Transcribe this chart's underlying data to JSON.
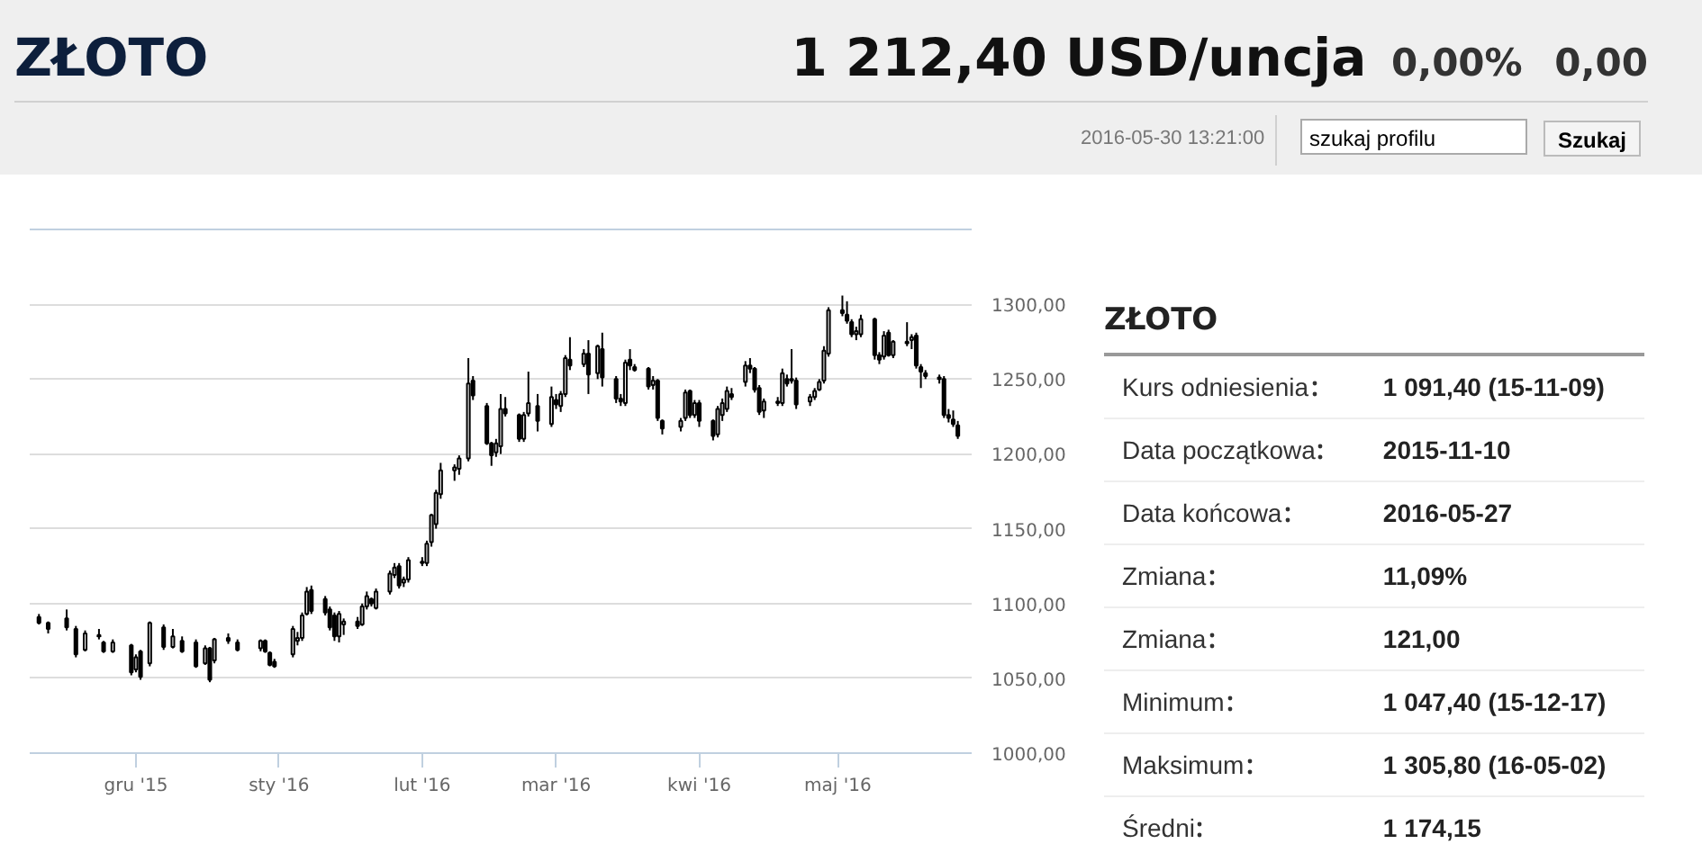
{
  "chart_data": [
    {
      "type": "candlestick",
      "title": "ZŁOTO",
      "subtitle": "1 212,40 USD/uncja",
      "annotations": [
        "0,00%",
        "0,00",
        "2016-05-30 13:21:00",
        "szukaj profilu",
        "Szukaj"
      ],
      "color": "#000000",
      "grid": "y",
      "xlim": [
        "2015-11-08",
        "2016-05-30"
      ],
      "xticks": [
        {
          "value": "2015-12-01",
          "label": "gru '15"
        },
        {
          "value": "2016-01-01",
          "label": "sty '16"
        },
        {
          "value": "2016-02-01",
          "label": "lut '16"
        },
        {
          "value": "2016-03-01",
          "label": "mar '16"
        },
        {
          "value": "2016-04-01",
          "label": "kwi '16"
        },
        {
          "value": "2016-05-01",
          "label": "maj '16"
        }
      ],
      "ylim": [
        1000,
        1350
      ],
      "yticks": [
        {
          "value": 1000,
          "label": "1000,00"
        },
        {
          "value": 1050,
          "label": "1050,00"
        },
        {
          "value": 1100,
          "label": "1100,00"
        },
        {
          "value": 1150,
          "label": "1150,00"
        },
        {
          "value": 1200,
          "label": "1200,00"
        },
        {
          "value": 1250,
          "label": "1250,00"
        },
        {
          "value": 1300,
          "label": "1300,00"
        }
      ],
      "x": [
        "2015-11-10",
        "2015-11-12",
        "2015-11-16",
        "2015-11-18",
        "2015-11-20",
        "2015-11-23",
        "2015-11-24",
        "2015-11-26",
        "2015-11-30",
        "2015-12-01",
        "2015-12-02",
        "2015-12-04",
        "2015-12-07",
        "2015-12-09",
        "2015-12-11",
        "2015-12-14",
        "2015-12-16",
        "2015-12-17",
        "2015-12-18",
        "2015-12-21",
        "2015-12-23",
        "2015-12-28",
        "2015-12-29",
        "2015-12-30",
        "2015-12-31",
        "2016-01-04",
        "2016-01-05",
        "2016-01-06",
        "2016-01-07",
        "2016-01-08",
        "2016-01-11",
        "2016-01-12",
        "2016-01-13",
        "2016-01-14",
        "2016-01-15",
        "2016-01-18",
        "2016-01-19",
        "2016-01-20",
        "2016-01-21",
        "2016-01-22",
        "2016-01-25",
        "2016-01-26",
        "2016-01-27",
        "2016-01-28",
        "2016-01-29",
        "2016-02-01",
        "2016-02-02",
        "2016-02-03",
        "2016-02-04",
        "2016-02-05",
        "2016-02-08",
        "2016-02-09",
        "2016-02-11",
        "2016-02-12",
        "2016-02-15",
        "2016-02-16",
        "2016-02-17",
        "2016-02-18",
        "2016-02-19",
        "2016-02-22",
        "2016-02-23",
        "2016-02-24",
        "2016-02-26",
        "2016-02-29",
        "2016-03-01",
        "2016-03-02",
        "2016-03-03",
        "2016-03-04",
        "2016-03-07",
        "2016-03-08",
        "2016-03-10",
        "2016-03-11",
        "2016-03-14",
        "2016-03-15",
        "2016-03-16",
        "2016-03-17",
        "2016-03-18",
        "2016-03-21",
        "2016-03-22",
        "2016-03-23",
        "2016-03-24",
        "2016-03-28",
        "2016-03-29",
        "2016-03-30",
        "2016-03-31",
        "2016-04-01",
        "2016-04-04",
        "2016-04-05",
        "2016-04-06",
        "2016-04-07",
        "2016-04-08",
        "2016-04-11",
        "2016-04-12",
        "2016-04-13",
        "2016-04-14",
        "2016-04-15",
        "2016-04-18",
        "2016-04-19",
        "2016-04-20",
        "2016-04-21",
        "2016-04-22",
        "2016-04-25",
        "2016-04-26",
        "2016-04-27",
        "2016-04-28",
        "2016-04-29",
        "2016-05-02",
        "2016-05-03",
        "2016-05-04",
        "2016-05-05",
        "2016-05-06",
        "2016-05-09",
        "2016-05-10",
        "2016-05-11",
        "2016-05-12",
        "2016-05-13",
        "2016-05-16",
        "2016-05-17",
        "2016-05-18",
        "2016-05-19",
        "2016-05-20",
        "2016-05-23",
        "2016-05-24",
        "2016-05-25",
        "2016-05-26",
        "2016-05-27"
      ],
      "ohlc": [
        [
          1091,
          1093,
          1086,
          1087
        ],
        [
          1087,
          1088,
          1080,
          1083
        ],
        [
          1090,
          1096,
          1082,
          1084
        ],
        [
          1083,
          1085,
          1064,
          1066
        ],
        [
          1069,
          1082,
          1068,
          1080
        ],
        [
          1079,
          1083,
          1076,
          1078
        ],
        [
          1074,
          1075,
          1067,
          1068
        ],
        [
          1068,
          1076,
          1067,
          1074
        ],
        [
          1072,
          1073,
          1052,
          1054
        ],
        [
          1056,
          1066,
          1054,
          1064
        ],
        [
          1068,
          1069,
          1049,
          1051
        ],
        [
          1060,
          1088,
          1058,
          1087
        ],
        [
          1084,
          1086,
          1069,
          1071
        ],
        [
          1071,
          1083,
          1070,
          1078
        ],
        [
          1075,
          1078,
          1067,
          1068
        ],
        [
          1074,
          1076,
          1057,
          1058
        ],
        [
          1060,
          1072,
          1059,
          1070
        ],
        [
          1070,
          1071,
          1047.4,
          1049
        ],
        [
          1062,
          1077,
          1060,
          1076
        ],
        [
          1077,
          1080,
          1073,
          1075
        ],
        [
          1074,
          1076,
          1068,
          1069
        ],
        [
          1070,
          1076,
          1068,
          1075
        ],
        [
          1075,
          1076,
          1067,
          1068
        ],
        [
          1067,
          1068,
          1058,
          1059
        ],
        [
          1061,
          1063,
          1057,
          1058
        ],
        [
          1066,
          1085,
          1064,
          1083
        ],
        [
          1075,
          1081,
          1072,
          1077
        ],
        [
          1077,
          1094,
          1075,
          1092
        ],
        [
          1093,
          1111,
          1092,
          1108
        ],
        [
          1109,
          1112,
          1093,
          1095
        ],
        [
          1103,
          1105,
          1092,
          1094
        ],
        [
          1096,
          1098,
          1082,
          1084
        ],
        [
          1092,
          1094,
          1075,
          1078
        ],
        [
          1078,
          1095,
          1074,
          1093
        ],
        [
          1086,
          1090,
          1079,
          1088
        ],
        [
          1088,
          1091,
          1083,
          1085
        ],
        [
          1086,
          1100,
          1085,
          1098
        ],
        [
          1098,
          1108,
          1096,
          1105
        ],
        [
          1103,
          1104,
          1098,
          1100
        ],
        [
          1097,
          1110,
          1096,
          1108
        ],
        [
          1108,
          1122,
          1106,
          1120
        ],
        [
          1119,
          1127,
          1117,
          1124
        ],
        [
          1125,
          1127,
          1110,
          1112
        ],
        [
          1114,
          1118,
          1111,
          1116
        ],
        [
          1116,
          1131,
          1114,
          1129
        ],
        [
          1128,
          1131,
          1125,
          1127
        ],
        [
          1127,
          1142,
          1125,
          1140
        ],
        [
          1141,
          1160,
          1138,
          1159
        ],
        [
          1153,
          1176,
          1150,
          1174
        ],
        [
          1173,
          1194,
          1170,
          1189
        ],
        [
          1189,
          1193,
          1182,
          1191
        ],
        [
          1190,
          1199,
          1186,
          1197
        ],
        [
          1197,
          1264,
          1195,
          1247
        ],
        [
          1249,
          1252,
          1236,
          1239
        ],
        [
          1232,
          1234,
          1206,
          1207
        ],
        [
          1207,
          1208,
          1192,
          1199
        ],
        [
          1201,
          1210,
          1198,
          1207
        ],
        [
          1205,
          1240,
          1200,
          1230
        ],
        [
          1230,
          1238,
          1225,
          1227
        ],
        [
          1226,
          1227,
          1208,
          1210
        ],
        [
          1210,
          1228,
          1208,
          1226
        ],
        [
          1227,
          1255,
          1225,
          1234
        ],
        [
          1232,
          1240,
          1215,
          1222
        ],
        [
          1220,
          1245,
          1218,
          1238
        ],
        [
          1236,
          1240,
          1230,
          1233
        ],
        [
          1232,
          1242,
          1228,
          1240
        ],
        [
          1240,
          1266,
          1238,
          1264
        ],
        [
          1263,
          1278,
          1256,
          1259
        ],
        [
          1260,
          1270,
          1258,
          1267
        ],
        [
          1267,
          1276,
          1240,
          1253
        ],
        [
          1254,
          1273,
          1250,
          1272
        ],
        [
          1270,
          1281,
          1245,
          1251
        ],
        [
          1250,
          1252,
          1234,
          1237
        ],
        [
          1237,
          1240,
          1232,
          1235
        ],
        [
          1234,
          1263,
          1232,
          1261
        ],
        [
          1263,
          1270,
          1256,
          1259
        ],
        [
          1258,
          1260,
          1255,
          1256
        ],
        [
          1257,
          1258,
          1243,
          1245
        ],
        [
          1246,
          1252,
          1243,
          1249
        ],
        [
          1249,
          1250,
          1222,
          1224
        ],
        [
          1222,
          1223,
          1213,
          1217
        ],
        [
          1218,
          1224,
          1215,
          1222
        ],
        [
          1224,
          1243,
          1222,
          1241
        ],
        [
          1242,
          1243,
          1224,
          1226
        ],
        [
          1226,
          1236,
          1224,
          1234
        ],
        [
          1234,
          1236,
          1218,
          1222
        ],
        [
          1222,
          1223,
          1209,
          1212
        ],
        [
          1213,
          1232,
          1211,
          1230
        ],
        [
          1226,
          1237,
          1222,
          1234
        ],
        [
          1230,
          1245,
          1228,
          1242
        ],
        [
          1240,
          1244,
          1236,
          1238
        ],
        [
          1248,
          1262,
          1245,
          1259
        ],
        [
          1259,
          1264,
          1254,
          1257
        ],
        [
          1257,
          1258,
          1241,
          1243
        ],
        [
          1244,
          1246,
          1226,
          1228
        ],
        [
          1229,
          1237,
          1224,
          1235
        ],
        [
          1234,
          1238,
          1232,
          1235
        ],
        [
          1234,
          1257,
          1232,
          1254
        ],
        [
          1250,
          1253,
          1245,
          1247
        ],
        [
          1250,
          1270,
          1247,
          1249
        ],
        [
          1249,
          1251,
          1230,
          1233
        ],
        [
          1235,
          1240,
          1232,
          1238
        ],
        [
          1238,
          1244,
          1236,
          1242
        ],
        [
          1243,
          1250,
          1242,
          1248
        ],
        [
          1249,
          1272,
          1247,
          1269
        ],
        [
          1267,
          1298,
          1265,
          1296
        ],
        [
          1296,
          1305.8,
          1292,
          1294
        ],
        [
          1293,
          1302,
          1287,
          1289
        ],
        [
          1288,
          1290,
          1278,
          1280
        ],
        [
          1280,
          1285,
          1276,
          1282
        ],
        [
          1280,
          1293,
          1278,
          1290
        ],
        [
          1290,
          1291,
          1263,
          1266
        ],
        [
          1266,
          1268,
          1260,
          1263
        ],
        [
          1265,
          1282,
          1263,
          1279
        ],
        [
          1281,
          1283,
          1265,
          1266
        ],
        [
          1266,
          1276,
          1264,
          1275
        ],
        [
          1274,
          1288,
          1272,
          1275
        ],
        [
          1276,
          1280,
          1270,
          1278
        ],
        [
          1279,
          1281,
          1257,
          1259
        ],
        [
          1258,
          1260,
          1244,
          1255
        ],
        [
          1254,
          1256,
          1250,
          1252
        ],
        [
          1251,
          1253,
          1247,
          1250
        ],
        [
          1250,
          1252,
          1224,
          1226
        ],
        [
          1226,
          1230,
          1221,
          1224
        ],
        [
          1223,
          1229,
          1218,
          1220
        ],
        [
          1219,
          1222,
          1210,
          1212
        ]
      ]
    },
    {
      "type": "other",
      "title": "ZŁOTO",
      "categories": [
        "Kurs odniesienia",
        "Data początkowa",
        "Data końcowa",
        "Zmiana",
        "Zmiana",
        "Minimum",
        "Maksimum",
        "Średni"
      ],
      "value_labels": [
        "1 091,40 (15-11-09)",
        "2015-11-10",
        "2016-05-27",
        "11,09%",
        "121,00",
        "1 047,40 (15-12-17)",
        "1 305,80 (16-05-02)",
        "1 174,15"
      ]
    }
  ]
}
